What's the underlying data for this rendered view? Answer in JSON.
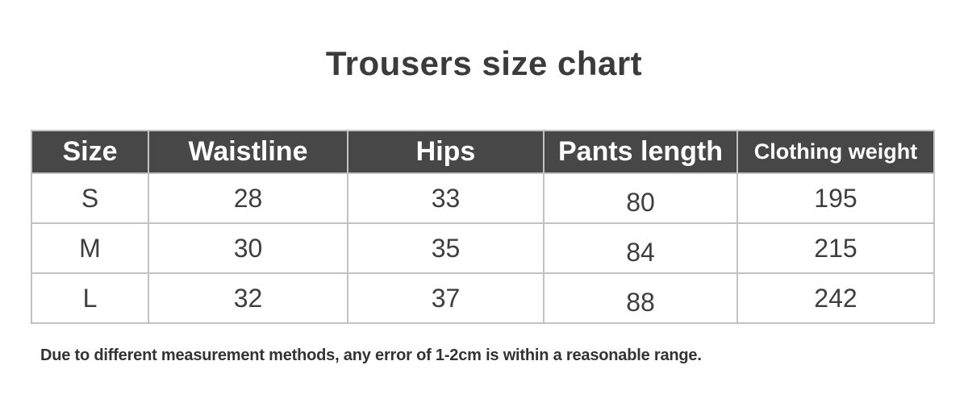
{
  "title": "Trousers size chart",
  "footnote": "Due to different measurement methods, any error of 1-2cm is within a reasonable range.",
  "colors": {
    "page_bg": "#ffffff",
    "title_text": "#3b3b3b",
    "header_bg": "#474747",
    "header_text": "#ffffff",
    "border": "#c2c2c2",
    "body_text": "#3e3e3e",
    "note_text": "#333333"
  },
  "chart_data": {
    "type": "table",
    "title": "Trousers size chart",
    "columns": [
      "Size",
      "Waistline",
      "Hips",
      "Pants length",
      "Clothing weight"
    ],
    "rows": [
      [
        "S",
        28,
        33,
        80,
        195
      ],
      [
        "M",
        30,
        35,
        84,
        215
      ],
      [
        "L",
        32,
        37,
        88,
        242
      ]
    ],
    "note": "Due to different measurement methods, any error of 1-2cm is within a reasonable range.",
    "layout_hints": {
      "header_style": "dark band, white bold labels",
      "grid": "on",
      "last_column_header_smaller": true
    }
  }
}
